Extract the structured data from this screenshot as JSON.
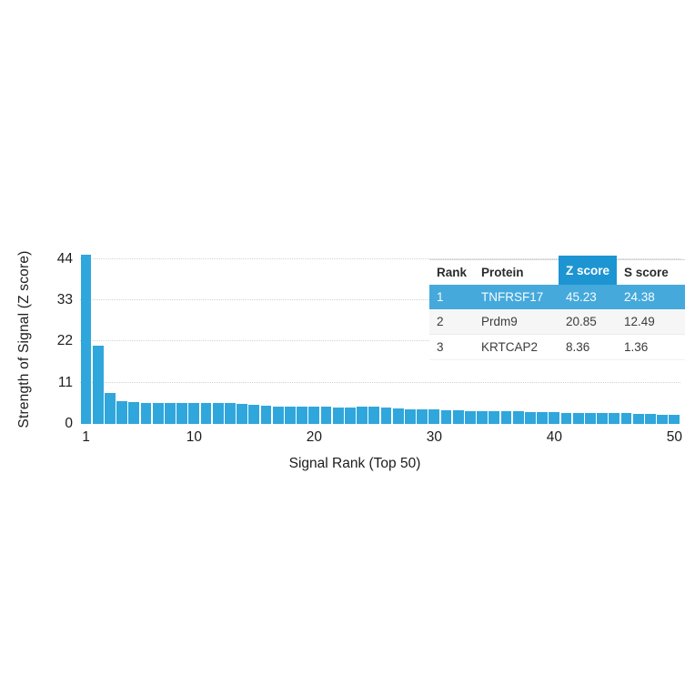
{
  "chart_data": {
    "type": "bar",
    "title": "",
    "xlabel": "Signal Rank (Top 50)",
    "ylabel": "Strength of Signal (Z score)",
    "ylim": [
      0,
      45.6
    ],
    "yticks": [
      0,
      11,
      22,
      33,
      44
    ],
    "xticks": [
      1,
      10,
      20,
      30,
      40,
      50
    ],
    "grid": "horizontal-dotted",
    "legend": "none",
    "bar_color": "#2fa7dc",
    "categories_note": "x = signal rank 1..50",
    "values": [
      45.23,
      20.85,
      8.36,
      6.1,
      5.8,
      5.7,
      5.6,
      5.6,
      5.5,
      5.5,
      5.6,
      5.6,
      5.5,
      5.3,
      5.2,
      4.9,
      4.7,
      4.6,
      4.5,
      4.6,
      4.5,
      4.4,
      4.4,
      4.5,
      4.5,
      4.3,
      4.1,
      4.0,
      3.9,
      3.8,
      3.7,
      3.6,
      3.5,
      3.4,
      3.4,
      3.3,
      3.3,
      3.2,
      3.1,
      3.1,
      3.0,
      3.0,
      2.9,
      2.9,
      2.8,
      2.8,
      2.7,
      2.6,
      2.5,
      2.4
    ]
  },
  "axes": {
    "ylabel": "Strength of Signal (Z score)",
    "xlabel": "Signal Rank (Top 50)"
  },
  "table": {
    "headers": [
      "Rank",
      "Protein",
      "Z score",
      "S score"
    ],
    "header_highlight_color": "#1d95d2",
    "row_highlight_color": "#45a9db",
    "rows": [
      {
        "rank": "1",
        "protein": "TNFRSF17",
        "z": "45.23",
        "s": "24.38"
      },
      {
        "rank": "2",
        "protein": "Prdm9",
        "z": "20.85",
        "s": "12.49"
      },
      {
        "rank": "3",
        "protein": "KRTCAP2",
        "z": "8.36",
        "s": "1.36"
      }
    ]
  }
}
